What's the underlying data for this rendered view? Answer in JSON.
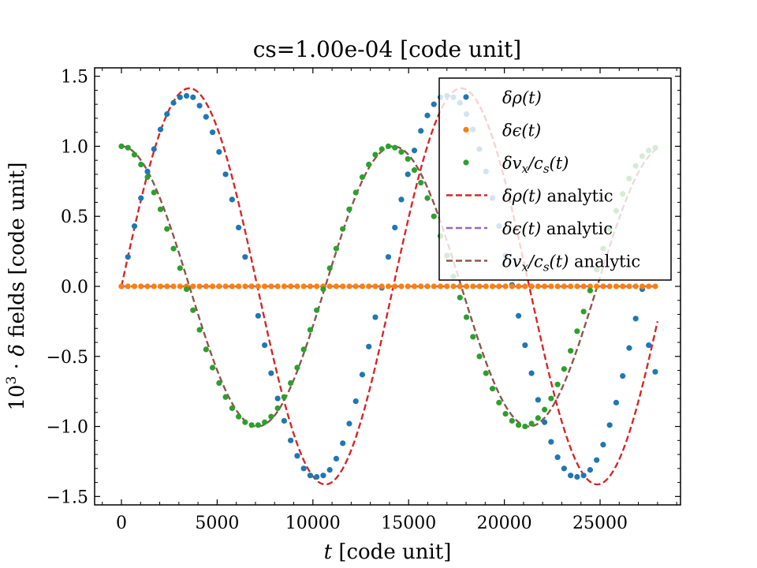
{
  "chart_data": {
    "type": "line",
    "title": "cs=1.00e-04 [code unit]",
    "xlabel": {
      "var": "t",
      "rest": " [code unit]"
    },
    "ylabel": {
      "prefix": "10",
      "sup": "3",
      "mid": " · ",
      "var": "δ",
      "rest": " fields [code unit]"
    },
    "xlim": [
      -1400,
      29200
    ],
    "ylim": [
      -1.56,
      1.56
    ],
    "xticks": [
      0,
      5000,
      10000,
      15000,
      20000,
      25000
    ],
    "xtick_labels": [
      "0",
      "5000",
      "10000",
      "15000",
      "20000",
      "25000"
    ],
    "yticks": [
      -1.5,
      -1.0,
      -0.5,
      0.0,
      0.5,
      1.0,
      1.5
    ],
    "ytick_labels": [
      "−1.5",
      "−1.0",
      "−0.5",
      "0.0",
      "0.5",
      "1.0",
      "1.5"
    ],
    "grid": false,
    "legend_position": "top-right",
    "colors": {
      "rho": "#1f77b4",
      "eps": "#ff7f0e",
      "vel": "#2ca02c",
      "rho_analytic": "#d62728",
      "eps_analytic": "#9467bd",
      "vel_analytic": "#8c564b"
    },
    "sample_x": [
      0,
      340,
      680,
      1020,
      1360,
      1700,
      2040,
      2380,
      2720,
      3060,
      3400,
      3740,
      4080,
      4420,
      4760,
      5100,
      5440,
      5780,
      6120,
      6460,
      6800,
      7140,
      7480,
      7820,
      8160,
      8500,
      8840,
      9180,
      9520,
      9860,
      10200,
      10540,
      10880,
      11220,
      11560,
      11900,
      12240,
      12580,
      12920,
      13260,
      13600,
      13940,
      14280,
      14620,
      14960,
      15300,
      15640,
      15980,
      16320,
      16660,
      17000,
      17340,
      17680,
      18020,
      18360,
      18700,
      19040,
      19380,
      19720,
      20060,
      20400,
      20740,
      21080,
      21420,
      21760,
      22100,
      22440,
      22780,
      23120,
      23460,
      23800,
      24140,
      24480,
      24820,
      25160,
      25500,
      25840,
      26180,
      26520,
      26860,
      27200,
      27540,
      27880
    ],
    "series": [
      {
        "key": "rho",
        "name": "δρ(t)",
        "style": "markers",
        "values": [
          0.0,
          0.21,
          0.43,
          0.63,
          0.82,
          0.98,
          1.12,
          1.23,
          1.31,
          1.35,
          1.36,
          1.35,
          1.29,
          1.21,
          1.1,
          0.96,
          0.8,
          0.62,
          0.42,
          0.21,
          0.0,
          -0.21,
          -0.42,
          -0.62,
          -0.8,
          -0.96,
          -1.1,
          -1.21,
          -1.3,
          -1.35,
          -1.36,
          -1.35,
          -1.31,
          -1.23,
          -1.12,
          -0.98,
          -0.82,
          -0.63,
          -0.43,
          -0.22,
          -0.01,
          0.21,
          0.42,
          0.62,
          0.8,
          0.97,
          1.11,
          1.22,
          1.3,
          1.35,
          1.36,
          1.35,
          1.31,
          1.23,
          1.12,
          0.98,
          0.82,
          0.63,
          0.43,
          0.22,
          0.01,
          -0.21,
          -0.42,
          -0.62,
          -0.81,
          -0.97,
          -1.11,
          -1.22,
          -1.3,
          -1.35,
          -1.36,
          -1.35,
          -1.31,
          -1.24,
          -1.13,
          -0.99,
          -0.83,
          -0.64,
          -0.44,
          -0.23,
          -0.02,
          -0.42,
          -0.61
        ]
      },
      {
        "key": "eps",
        "name": "δϵ(t)",
        "style": "markers",
        "values": [
          0.0,
          0.0,
          0.0,
          0.0,
          0.0,
          0.0,
          0.0,
          0.0,
          0.0,
          0.0,
          0.0,
          0.0,
          0.0,
          0.0,
          0.0,
          0.0,
          0.0,
          0.0,
          0.0,
          0.0,
          0.0,
          0.0,
          0.0,
          0.0,
          0.0,
          0.0,
          0.0,
          0.0,
          0.0,
          0.0,
          0.0,
          0.0,
          0.0,
          0.0,
          0.0,
          0.0,
          0.0,
          0.0,
          0.0,
          0.0,
          0.0,
          0.0,
          0.0,
          0.0,
          0.0,
          0.0,
          0.0,
          0.0,
          0.0,
          0.0,
          0.0,
          0.0,
          0.0,
          0.0,
          0.0,
          0.0,
          0.0,
          0.0,
          0.0,
          0.0,
          0.0,
          0.0,
          0.0,
          0.0,
          0.0,
          0.0,
          0.0,
          0.0,
          0.0,
          0.0,
          0.0,
          0.0,
          0.0,
          0.0,
          0.0,
          0.0,
          0.0,
          0.0,
          0.0,
          0.0,
          0.0,
          0.0,
          0.0
        ]
      },
      {
        "key": "vel",
        "name": "δv_x/c_s(t)",
        "style": "markers",
        "values": [
          1.0,
          0.99,
          0.94,
          0.87,
          0.78,
          0.67,
          0.55,
          0.41,
          0.27,
          0.13,
          -0.02,
          -0.17,
          -0.31,
          -0.45,
          -0.58,
          -0.69,
          -0.79,
          -0.87,
          -0.93,
          -0.97,
          -0.99,
          -0.99,
          -0.97,
          -0.93,
          -0.87,
          -0.79,
          -0.69,
          -0.58,
          -0.45,
          -0.31,
          -0.17,
          -0.02,
          0.13,
          0.27,
          0.41,
          0.55,
          0.67,
          0.78,
          0.87,
          0.94,
          0.98,
          1.0,
          0.99,
          0.96,
          0.91,
          0.83,
          0.74,
          0.63,
          0.5,
          0.36,
          0.22,
          0.07,
          -0.08,
          -0.22,
          -0.36,
          -0.5,
          -0.62,
          -0.73,
          -0.83,
          -0.91,
          -0.96,
          -0.99,
          -1.0,
          -0.98,
          -0.94,
          -0.88,
          -0.8,
          -0.7,
          -0.59,
          -0.46,
          -0.32,
          -0.18,
          -0.03,
          0.12,
          0.27,
          0.41,
          0.54,
          0.66,
          0.77,
          0.86,
          0.93,
          0.97,
          0.99
        ]
      },
      {
        "key": "rho_analytic",
        "name": "δρ(t) analytic",
        "style": "dashed",
        "amplitude": 1.414,
        "period": 14200,
        "phase": "sin"
      },
      {
        "key": "eps_analytic",
        "name": "δϵ(t) analytic",
        "style": "dashed",
        "amplitude": 0,
        "period": 14200,
        "phase": "zero"
      },
      {
        "key": "vel_analytic",
        "name": "δv_x/c_s(t) analytic",
        "style": "dashed",
        "amplitude": 1.0,
        "period": 14200,
        "phase": "cos"
      }
    ],
    "analytic_x_range": [
      0,
      28000
    ]
  },
  "legend": {
    "entries": [
      {
        "key": "rho",
        "math": "δρ(t)",
        "suffix": ""
      },
      {
        "key": "eps",
        "math": "δϵ(t)",
        "suffix": ""
      },
      {
        "key": "vel",
        "math": "δv",
        "sub1": "x",
        "math2": "/c",
        "sub2": "s",
        "math3": "(t)",
        "suffix": ""
      },
      {
        "key": "rho_analytic",
        "math": "δρ(t)",
        "suffix": " analytic"
      },
      {
        "key": "eps_analytic",
        "math": "δϵ(t)",
        "suffix": " analytic"
      },
      {
        "key": "vel_analytic",
        "math": "δv",
        "sub1": "x",
        "math2": "/c",
        "sub2": "s",
        "math3": "(t)",
        "suffix": " analytic"
      }
    ]
  }
}
